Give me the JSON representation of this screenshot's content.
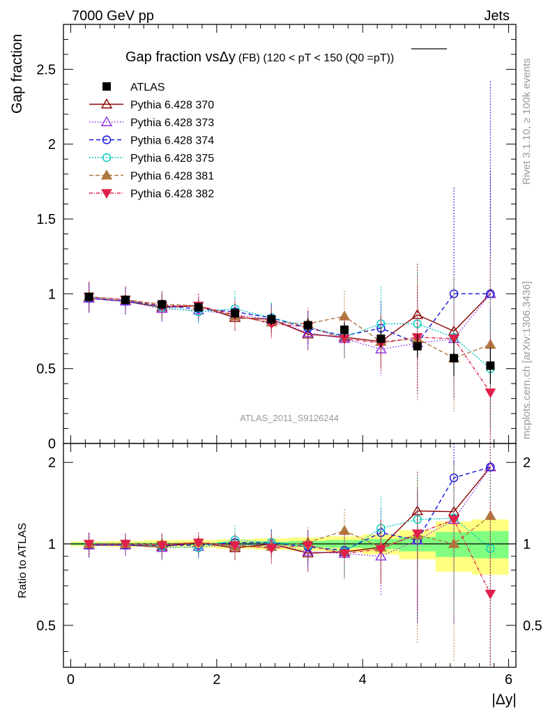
{
  "header": {
    "left": "7000 GeV pp",
    "right": "Jets"
  },
  "side_labels": {
    "rivet": "Rivet 3.1.10, ≥ 100k events",
    "mcplots": "mcplots.cern.ch [arXiv:1306.3436]"
  },
  "chart_data": {
    "type": "scatter",
    "title": "Gap fraction vsΔy",
    "title_suffix": "(FB) (120 < pT < 150 (Q0 =",
    "title_overline": "pT",
    "title_close": "))",
    "xlabel": "|Δy|",
    "ylabel": "Gap fraction",
    "ratio_ylabel": "Ratio to ATLAS",
    "watermark": "ATLAS_2011_S9126244",
    "xlim": [
      -0.1,
      6.1
    ],
    "ylim": [
      0,
      2.8
    ],
    "ratio_ylim": [
      0.35,
      2.35
    ],
    "x_ticks": [
      "0",
      "2",
      "4",
      "6"
    ],
    "y_ticks": [
      "0",
      "0.5",
      "1",
      "1.5",
      "2",
      "2.5"
    ],
    "ratio_ticks": [
      "0.5",
      "1",
      "2"
    ],
    "x": [
      0.25,
      0.75,
      1.25,
      1.75,
      2.25,
      2.75,
      3.25,
      3.75,
      4.25,
      4.75,
      5.25,
      5.75
    ],
    "data": {
      "name": "ATLAS",
      "values": [
        0.98,
        0.96,
        0.93,
        0.91,
        0.87,
        0.83,
        0.79,
        0.76,
        0.7,
        0.65,
        0.57,
        0.52
      ],
      "err_stat": [
        0.01,
        0.01,
        0.01,
        0.01,
        0.015,
        0.015,
        0.02,
        0.025,
        0.03,
        0.04,
        0.06,
        0.06
      ],
      "err_total": [
        0.02,
        0.025,
        0.03,
        0.03,
        0.035,
        0.04,
        0.045,
        0.05,
        0.06,
        0.08,
        0.12,
        0.12
      ]
    },
    "series": [
      {
        "name": "Pythia 6.428 370",
        "color": "#8b0000",
        "marker": "triangle-open",
        "dash": "",
        "values": [
          0.97,
          0.95,
          0.91,
          0.92,
          0.84,
          0.83,
          0.73,
          0.71,
          0.68,
          0.86,
          0.75,
          1.0
        ],
        "errors": [
          0.1,
          0.09,
          0.09,
          0.08,
          0.09,
          0.1,
          0.11,
          0.14,
          0.18,
          0.34,
          0.4,
          0.82
        ]
      },
      {
        "name": "Pythia 6.428 373",
        "color": "#8a2be2",
        "marker": "triangle-open",
        "dash": "1.5,2.5",
        "values": [
          0.97,
          0.95,
          0.9,
          0.89,
          0.86,
          0.83,
          0.74,
          0.7,
          0.63,
          0.67,
          0.7,
          1.0
        ],
        "errors": [
          0.1,
          0.09,
          0.09,
          0.08,
          0.09,
          0.1,
          0.11,
          0.14,
          0.18,
          0.34,
          0.4,
          0.82
        ]
      },
      {
        "name": "Pythia 6.428 374",
        "color": "#1111dd",
        "marker": "circle-open",
        "dash": "6,4",
        "values": [
          0.97,
          0.95,
          0.92,
          0.9,
          0.88,
          0.84,
          0.77,
          0.72,
          0.77,
          0.67,
          1.0,
          1.0
        ],
        "errors": [
          0.1,
          0.09,
          0.09,
          0.08,
          0.09,
          0.1,
          0.11,
          0.14,
          0.18,
          0.34,
          0.71,
          1.42
        ]
      },
      {
        "name": "Pythia 6.428 375",
        "color": "#00ccbb",
        "marker": "circle-open",
        "dash": "2,2",
        "values": [
          0.98,
          0.96,
          0.91,
          0.88,
          0.9,
          0.84,
          0.78,
          0.71,
          0.8,
          0.8,
          0.71,
          0.5
        ],
        "errors": [
          0.1,
          0.09,
          0.09,
          0.08,
          0.12,
          0.1,
          0.11,
          0.14,
          0.25,
          0.34,
          0.4,
          0.4
        ]
      },
      {
        "name": "Pythia 6.428 381",
        "color": "#b07840",
        "marker": "triangle-filled",
        "dash": "6,3",
        "values": [
          0.98,
          0.96,
          0.93,
          0.92,
          0.85,
          0.81,
          0.8,
          0.85,
          0.68,
          0.7,
          0.57,
          0.66
        ],
        "errors": [
          0.1,
          0.09,
          0.09,
          0.08,
          0.09,
          0.1,
          0.11,
          0.17,
          0.18,
          0.42,
          0.36,
          0.6
        ]
      },
      {
        "name": "Pythia 6.428 382",
        "color": "#e0204a",
        "marker": "triangle-down-filled",
        "dash": "5,2,1,2",
        "values": [
          0.98,
          0.96,
          0.92,
          0.92,
          0.86,
          0.8,
          0.78,
          0.7,
          0.67,
          0.71,
          0.7,
          0.34
        ],
        "errors": [
          0.1,
          0.09,
          0.09,
          0.08,
          0.09,
          0.1,
          0.11,
          0.14,
          0.18,
          0.34,
          0.4,
          0.4
        ]
      }
    ]
  }
}
